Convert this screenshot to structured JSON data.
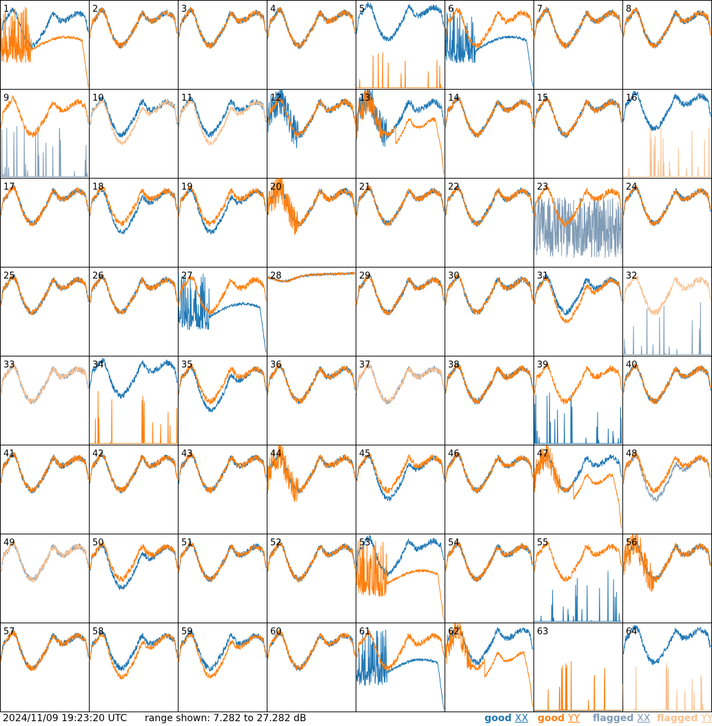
{
  "footer": {
    "timestamp": "2024/11/09 19:23:20 UTC",
    "range": "range shown: 7.282 to 27.282 dB",
    "legend": [
      {
        "prefix": "good",
        "key": "XX",
        "color": "#1f77b4"
      },
      {
        "prefix": "good",
        "key": "YY",
        "color": "#ff7f0e"
      },
      {
        "prefix": "flagged",
        "key": "XX",
        "color": "#7f9bb6"
      },
      {
        "prefix": "flagged",
        "key": "YY",
        "color": "#f9c08f"
      }
    ]
  },
  "chart_data": {
    "type": "line",
    "layout": "8x8 small multiples",
    "ylim": [
      7.282,
      27.282
    ],
    "yunits": "dB",
    "colors": {
      "good_xx": "#1f77b4",
      "good_yy": "#ff7f0e",
      "flagged_xx": "#7f9bb6",
      "flagged_yy": "#f9c08f"
    },
    "panels": [
      {
        "id": "1",
        "xx": "good",
        "yy": "good",
        "xx_shape": "normal",
        "yy_shape": "dropout"
      },
      {
        "id": "2",
        "xx": "good",
        "yy": "good",
        "xx_shape": "normal",
        "yy_shape": "normal"
      },
      {
        "id": "3",
        "xx": "good",
        "yy": "good",
        "xx_shape": "normal",
        "yy_shape": "normal"
      },
      {
        "id": "4",
        "xx": "good",
        "yy": "good",
        "xx_shape": "normal",
        "yy_shape": "normal"
      },
      {
        "id": "5",
        "xx": "good",
        "yy": "good",
        "xx_shape": "high",
        "yy_shape": "spikes_low"
      },
      {
        "id": "6",
        "xx": "good",
        "yy": "good",
        "xx_shape": "dropout",
        "yy_shape": "normal"
      },
      {
        "id": "7",
        "xx": "good",
        "yy": "good",
        "xx_shape": "normal",
        "yy_shape": "normal"
      },
      {
        "id": "8",
        "xx": "good",
        "yy": "good",
        "xx_shape": "normal",
        "yy_shape": "normal"
      },
      {
        "id": "9",
        "xx": "flagged",
        "yy": "good",
        "xx_shape": "spikes_low",
        "yy_shape": "normal"
      },
      {
        "id": "10",
        "xx": "good",
        "yy": "flagged",
        "xx_shape": "normal",
        "yy_shape": "low"
      },
      {
        "id": "11",
        "xx": "good",
        "yy": "flagged",
        "xx_shape": "normal",
        "yy_shape": "low"
      },
      {
        "id": "12",
        "xx": "good",
        "yy": "good",
        "xx_shape": "noisy",
        "yy_shape": "normal"
      },
      {
        "id": "13",
        "xx": "good",
        "yy": "good",
        "xx_shape": "noisy",
        "yy_shape": "droop"
      },
      {
        "id": "14",
        "xx": "good",
        "yy": "good",
        "xx_shape": "normal",
        "yy_shape": "normal"
      },
      {
        "id": "15",
        "xx": "good",
        "yy": "good",
        "xx_shape": "normal",
        "yy_shape": "normal"
      },
      {
        "id": "16",
        "xx": "good",
        "yy": "flagged",
        "xx_shape": "high",
        "yy_shape": "spikes_low"
      },
      {
        "id": "17",
        "xx": "good",
        "yy": "good",
        "xx_shape": "normal",
        "yy_shape": "normal"
      },
      {
        "id": "18",
        "xx": "good",
        "yy": "good",
        "xx_shape": "low",
        "yy_shape": "normal"
      },
      {
        "id": "19",
        "xx": "good",
        "yy": "good",
        "xx_shape": "low",
        "yy_shape": "normal"
      },
      {
        "id": "20",
        "xx": "good",
        "yy": "good",
        "xx_shape": "normal",
        "yy_shape": "noisy"
      },
      {
        "id": "21",
        "xx": "good",
        "yy": "good",
        "xx_shape": "normal",
        "yy_shape": "normal"
      },
      {
        "id": "22",
        "xx": "good",
        "yy": "good",
        "xx_shape": "normal",
        "yy_shape": "normal"
      },
      {
        "id": "23",
        "xx": "flagged",
        "yy": "good",
        "xx_shape": "noise_band",
        "yy_shape": "normal"
      },
      {
        "id": "24",
        "xx": "good",
        "yy": "good",
        "xx_shape": "normal",
        "yy_shape": "normal"
      },
      {
        "id": "25",
        "xx": "good",
        "yy": "good",
        "xx_shape": "normal",
        "yy_shape": "normal"
      },
      {
        "id": "26",
        "xx": "good",
        "yy": "good",
        "xx_shape": "normal",
        "yy_shape": "normal"
      },
      {
        "id": "27",
        "xx": "good",
        "yy": "good",
        "xx_shape": "dropout",
        "yy_shape": "normal"
      },
      {
        "id": "28",
        "xx": "good",
        "yy": "good",
        "xx_shape": "flat_high",
        "yy_shape": "flat_high"
      },
      {
        "id": "29",
        "xx": "good",
        "yy": "good",
        "xx_shape": "normal",
        "yy_shape": "normal"
      },
      {
        "id": "30",
        "xx": "good",
        "yy": "good",
        "xx_shape": "normal",
        "yy_shape": "normal"
      },
      {
        "id": "31",
        "xx": "good",
        "yy": "good",
        "xx_shape": "normal",
        "yy_shape": "low"
      },
      {
        "id": "32",
        "xx": "flagged",
        "yy": "flagged",
        "xx_shape": "spikes_low",
        "yy_shape": "normal"
      },
      {
        "id": "33",
        "xx": "flagged",
        "yy": "flagged",
        "xx_shape": "normal",
        "yy_shape": "normal"
      },
      {
        "id": "34",
        "xx": "good",
        "yy": "good",
        "xx_shape": "high",
        "yy_shape": "spikes_low"
      },
      {
        "id": "35",
        "xx": "good",
        "yy": "good",
        "xx_shape": "low",
        "yy_shape": "normal"
      },
      {
        "id": "36",
        "xx": "good",
        "yy": "good",
        "xx_shape": "normal",
        "yy_shape": "normal"
      },
      {
        "id": "37",
        "xx": "flagged",
        "yy": "flagged",
        "xx_shape": "normal",
        "yy_shape": "normal"
      },
      {
        "id": "38",
        "xx": "good",
        "yy": "good",
        "xx_shape": "normal",
        "yy_shape": "normal"
      },
      {
        "id": "39",
        "xx": "good",
        "yy": "good",
        "xx_shape": "spikes_low",
        "yy_shape": "normal"
      },
      {
        "id": "40",
        "xx": "good",
        "yy": "good",
        "xx_shape": "normal",
        "yy_shape": "normal"
      },
      {
        "id": "41",
        "xx": "good",
        "yy": "good",
        "xx_shape": "normal",
        "yy_shape": "normal"
      },
      {
        "id": "42",
        "xx": "good",
        "yy": "good",
        "xx_shape": "normal",
        "yy_shape": "normal"
      },
      {
        "id": "43",
        "xx": "good",
        "yy": "good",
        "xx_shape": "normal",
        "yy_shape": "normal"
      },
      {
        "id": "44",
        "xx": "good",
        "yy": "good",
        "xx_shape": "normal",
        "yy_shape": "noisy"
      },
      {
        "id": "45",
        "xx": "good",
        "yy": "good",
        "xx_shape": "low",
        "yy_shape": "normal"
      },
      {
        "id": "46",
        "xx": "good",
        "yy": "good",
        "xx_shape": "normal",
        "yy_shape": "normal"
      },
      {
        "id": "47",
        "xx": "good",
        "yy": "good",
        "xx_shape": "normal",
        "yy_shape": "droop"
      },
      {
        "id": "48",
        "xx": "flagged",
        "yy": "good",
        "xx_shape": "low",
        "yy_shape": "normal"
      },
      {
        "id": "49",
        "xx": "flagged",
        "yy": "flagged",
        "xx_shape": "normal",
        "yy_shape": "normal"
      },
      {
        "id": "50",
        "xx": "good",
        "yy": "good",
        "xx_shape": "low",
        "yy_shape": "normal"
      },
      {
        "id": "51",
        "xx": "good",
        "yy": "good",
        "xx_shape": "normal",
        "yy_shape": "normal"
      },
      {
        "id": "52",
        "xx": "good",
        "yy": "good",
        "xx_shape": "normal",
        "yy_shape": "normal"
      },
      {
        "id": "53",
        "xx": "good",
        "yy": "good",
        "xx_shape": "high",
        "yy_shape": "dropout"
      },
      {
        "id": "54",
        "xx": "good",
        "yy": "good",
        "xx_shape": "normal",
        "yy_shape": "normal"
      },
      {
        "id": "55",
        "xx": "good",
        "yy": "good",
        "xx_shape": "spikes_low",
        "yy_shape": "normal"
      },
      {
        "id": "56",
        "xx": "good",
        "yy": "good",
        "xx_shape": "normal",
        "yy_shape": "noisy"
      },
      {
        "id": "57",
        "xx": "good",
        "yy": "good",
        "xx_shape": "normal",
        "yy_shape": "normal"
      },
      {
        "id": "58",
        "xx": "good",
        "yy": "good",
        "xx_shape": "normal",
        "yy_shape": "low"
      },
      {
        "id": "59",
        "xx": "good",
        "yy": "good",
        "xx_shape": "normal",
        "yy_shape": "low"
      },
      {
        "id": "60",
        "xx": "good",
        "yy": "good",
        "xx_shape": "normal",
        "yy_shape": "normal"
      },
      {
        "id": "61",
        "xx": "good",
        "yy": "good",
        "xx_shape": "dropout",
        "yy_shape": "normal"
      },
      {
        "id": "62",
        "xx": "good",
        "yy": "good",
        "xx_shape": "high",
        "yy_shape": "droop"
      },
      {
        "id": "63",
        "xx": "good",
        "yy": "good",
        "xx_shape": "none",
        "yy_shape": "spikes_low"
      },
      {
        "id": "64",
        "xx": "good",
        "yy": "flagged",
        "xx_shape": "high",
        "yy_shape": "spikes_low"
      }
    ]
  }
}
